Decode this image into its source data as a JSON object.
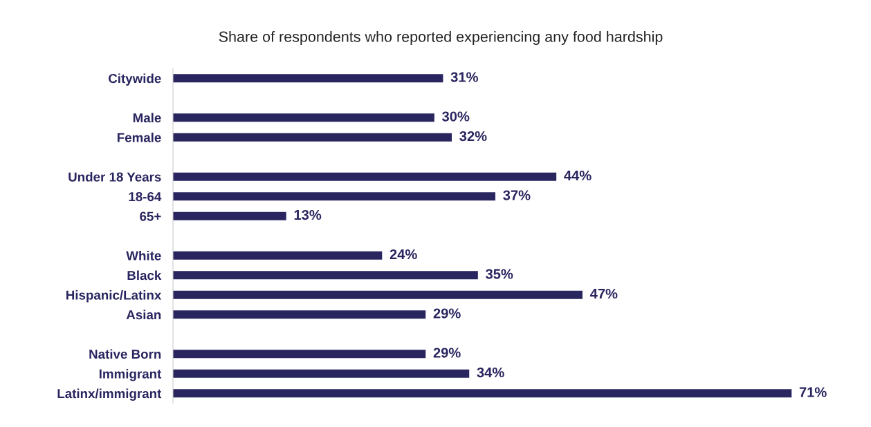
{
  "chart_data": {
    "type": "bar",
    "orientation": "horizontal",
    "title": "Share of respondents who reported experiencing any food hardship",
    "categories": [
      "Citywide",
      null,
      "Male",
      "Female",
      null,
      "Under 18 Years",
      "18-64",
      "65+",
      null,
      "White",
      "Black",
      "Hispanic/Latinx",
      "Asian",
      null,
      "Native Born",
      "Immigrant",
      "Latinx/immigrant"
    ],
    "values": [
      31,
      null,
      30,
      32,
      null,
      44,
      37,
      13,
      null,
      24,
      35,
      47,
      29,
      null,
      29,
      34,
      71
    ],
    "value_labels": [
      "31%",
      null,
      "30%",
      "32%",
      null,
      "44%",
      "37%",
      "13%",
      null,
      "24%",
      "35%",
      "47%",
      "29%",
      null,
      "29%",
      "34%",
      "71%"
    ],
    "color": "#29255f",
    "data_labels": true
  }
}
